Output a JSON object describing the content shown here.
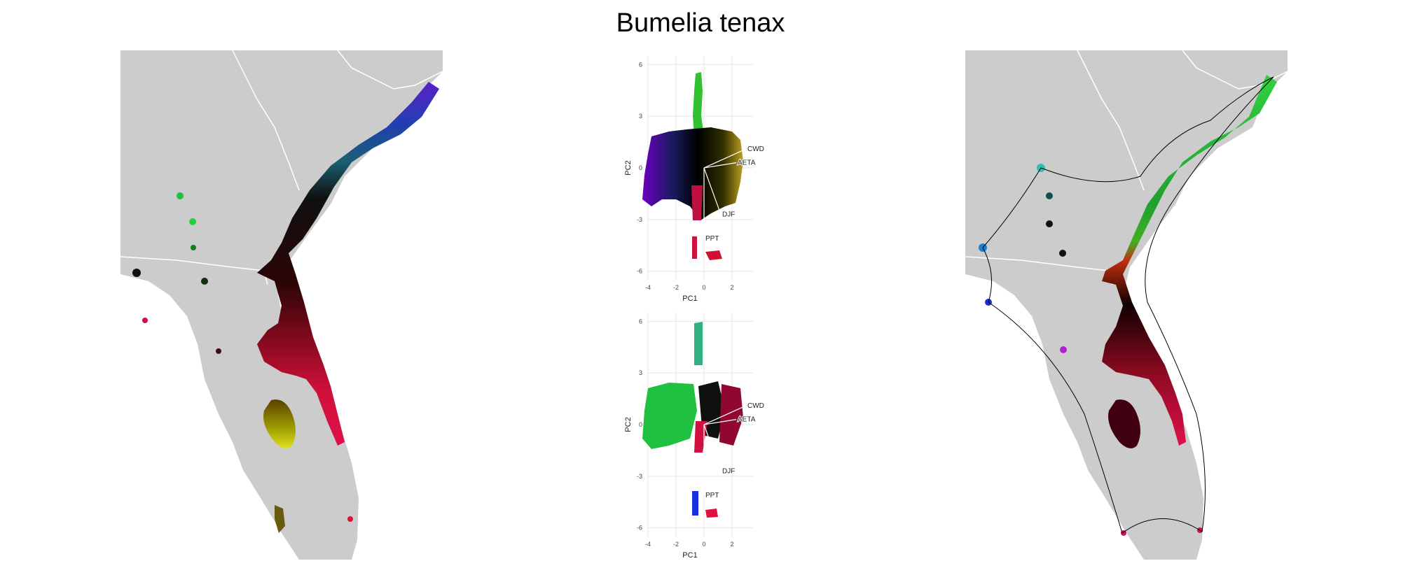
{
  "title": "Bumelia tenax",
  "colors": {
    "land": "#cccccc",
    "border": "#ffffff",
    "background": "#ffffff"
  },
  "chart_data": [
    {
      "type": "scatter",
      "panel": "pca-top",
      "xlabel": "PC1",
      "ylabel": "PC2",
      "xlim": [
        -4,
        3.5
      ],
      "ylim": [
        -6.5,
        6.5
      ],
      "xticks": [
        -4,
        -2,
        0,
        2
      ],
      "yticks": [
        -6,
        -3,
        0,
        3,
        6
      ],
      "grid": true,
      "loadings": [
        {
          "label": "CWD",
          "x": 3.0,
          "y": 1.1
        },
        {
          "label": "AETA",
          "x": 2.3,
          "y": 0.3
        },
        {
          "label": "DJF",
          "x": 1.2,
          "y": -2.7
        },
        {
          "label": "PPT",
          "x": 0.0,
          "y": -4.1
        }
      ]
    },
    {
      "type": "scatter",
      "panel": "pca-bottom",
      "xlabel": "PC1",
      "ylabel": "PC2",
      "xlim": [
        -4,
        3.5
      ],
      "ylim": [
        -6.5,
        6.5
      ],
      "xticks": [
        -4,
        -2,
        0,
        2
      ],
      "yticks": [
        -6,
        -3,
        0,
        3,
        6
      ],
      "grid": true,
      "loadings": [
        {
          "label": "CWD",
          "x": 3.0,
          "y": 1.1
        },
        {
          "label": "AETA",
          "x": 2.3,
          "y": 0.3
        },
        {
          "label": "DJF",
          "x": 1.2,
          "y": -2.7
        },
        {
          "label": "PPT",
          "x": 0.0,
          "y": -4.1
        }
      ]
    }
  ]
}
